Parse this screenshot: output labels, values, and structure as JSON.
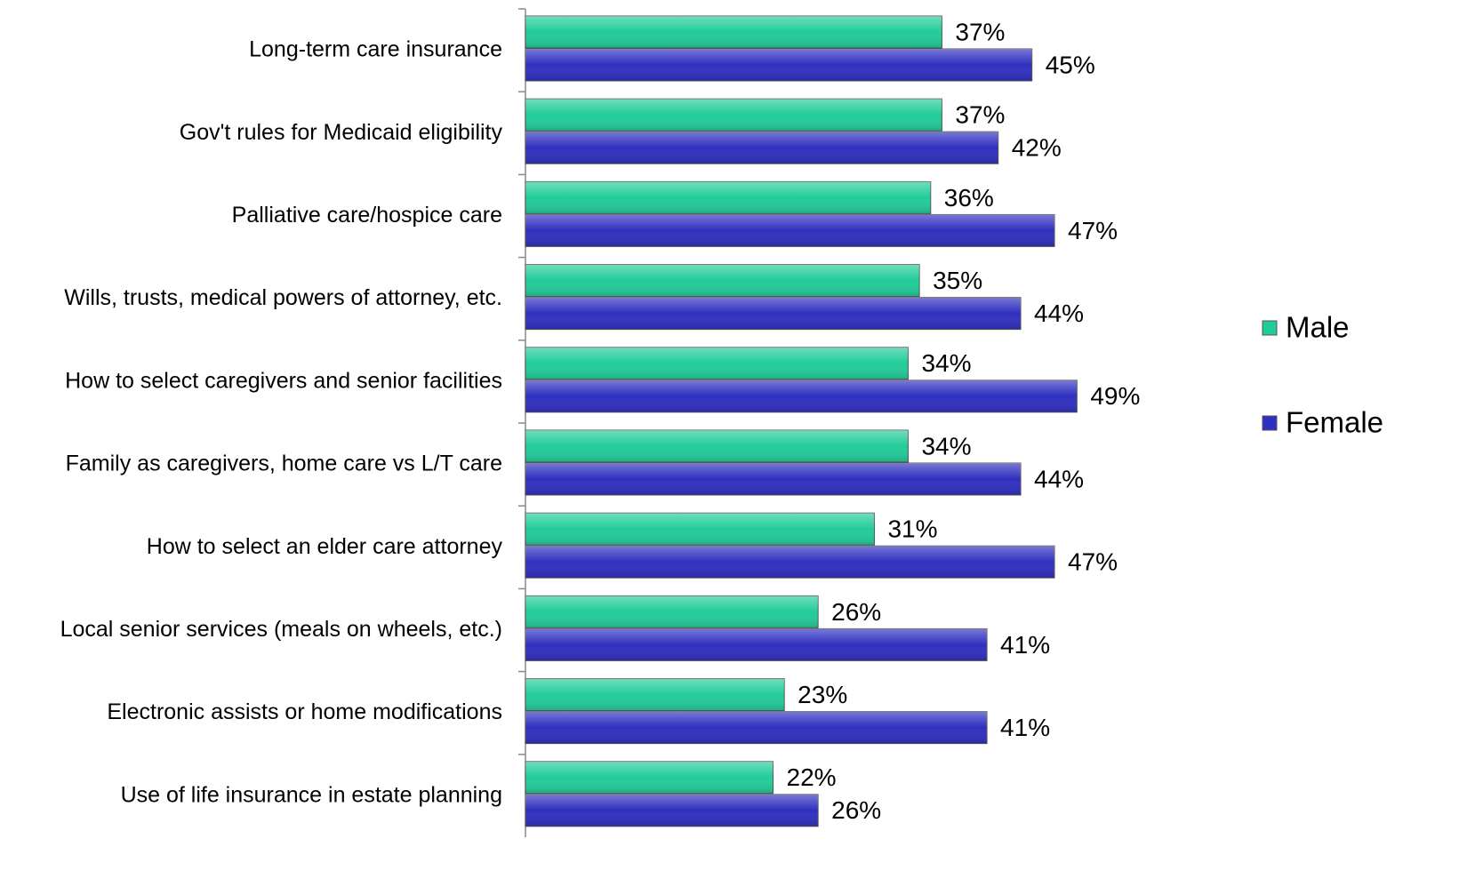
{
  "chart_data": {
    "type": "hbar",
    "categories": [
      "Long-term care insurance",
      "Gov't rules for Medicaid eligibility",
      "Palliative care/hospice care",
      "Wills, trusts, medical powers of attorney, etc.",
      "How to select caregivers and senior facilities",
      "Family as caregivers, home care vs L/T care",
      "How to select an elder care attorney",
      "Local senior services (meals on wheels, etc.)",
      "Electronic assists or home modifications",
      "Use of life insurance in estate planning"
    ],
    "series": [
      {
        "name": "Male",
        "color": "#22cc99",
        "values": [
          37,
          37,
          36,
          35,
          34,
          34,
          31,
          26,
          23,
          22
        ],
        "value_labels": [
          "37%",
          "37%",
          "36%",
          "35%",
          "34%",
          "34%",
          "31%",
          "26%",
          "23%",
          "22%"
        ]
      },
      {
        "name": "Female",
        "color": "#3030c0",
        "values": [
          45,
          42,
          47,
          44,
          49,
          44,
          47,
          41,
          41,
          26
        ],
        "value_labels": [
          "45%",
          "42%",
          "47%",
          "44%",
          "49%",
          "44%",
          "47%",
          "41%",
          "41%",
          "26%"
        ]
      }
    ],
    "legend": "right"
  }
}
